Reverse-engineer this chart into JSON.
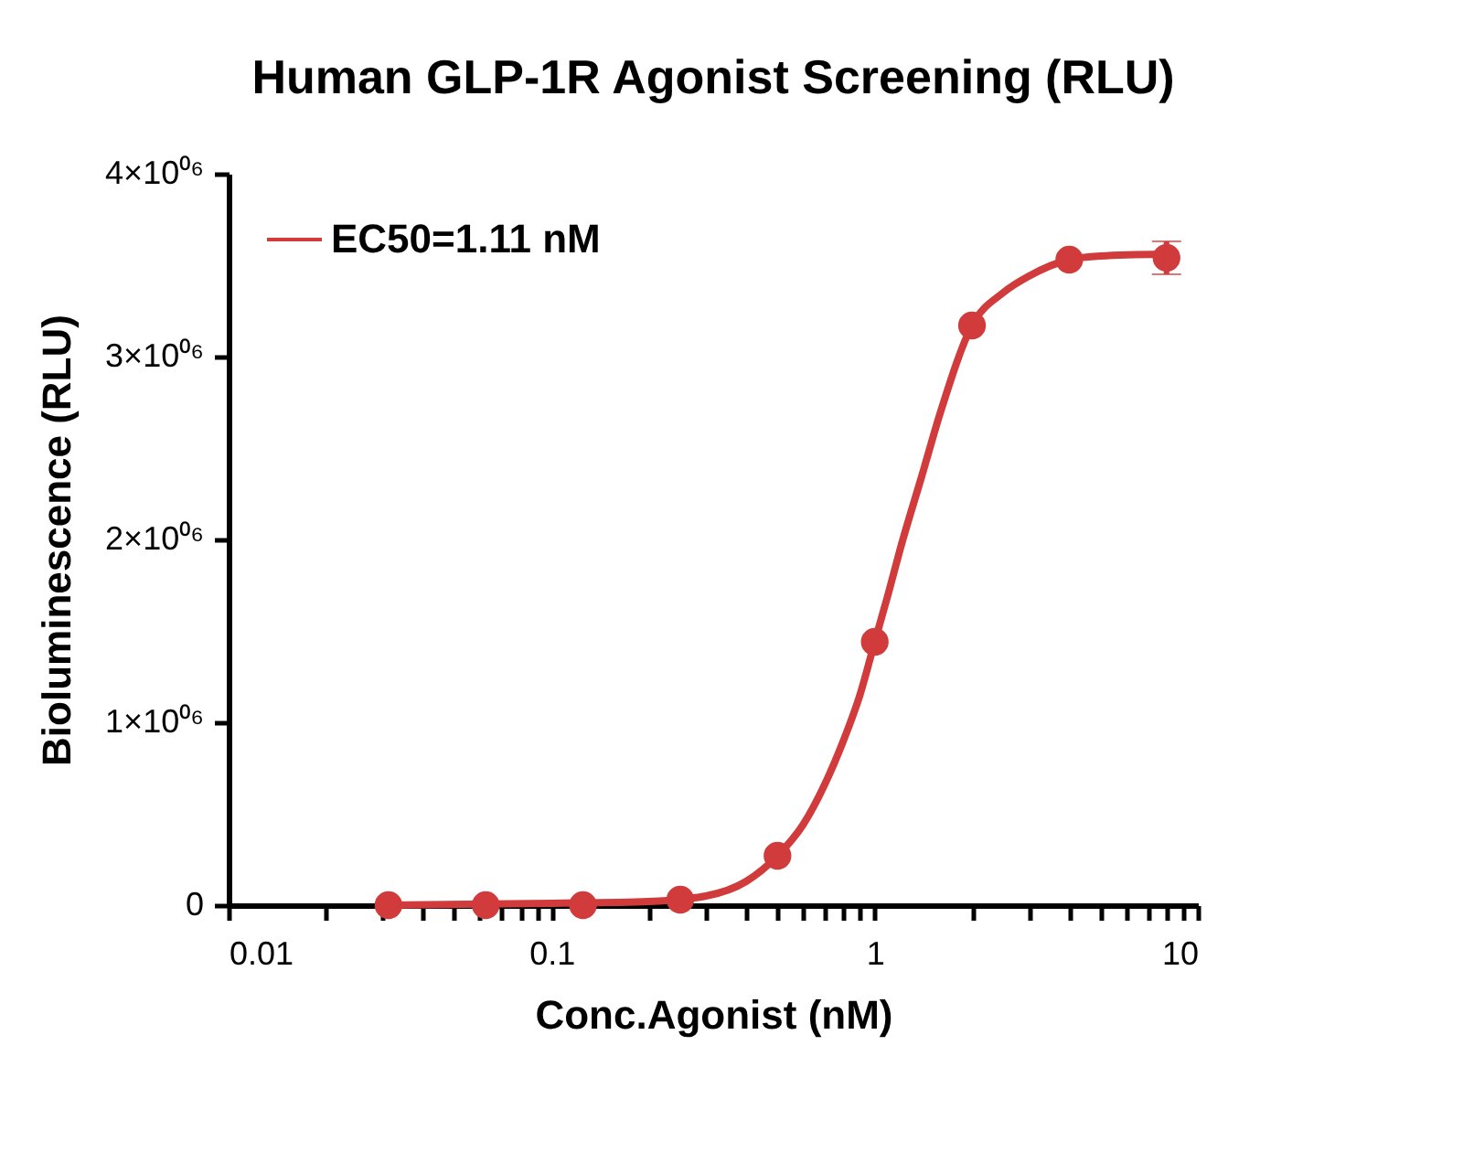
{
  "chart_data": {
    "type": "scatter",
    "title": "Human GLP-1R Agonist Screening  (RLU)",
    "xlabel": "Conc.Agonist (nM)",
    "ylabel": "Bioluminescence (RLU)",
    "log": "x",
    "grid": false,
    "legend": "top left",
    "marker": "circle",
    "xlim": [
      0.01,
      10
    ],
    "xticks": [
      0.01,
      {
        "value": 0.02,
        "label": null
      },
      {
        "value": 0.03,
        "label": null
      },
      {
        "value": 0.04,
        "label": null
      },
      {
        "value": 0.05,
        "label": null
      },
      {
        "value": 0.06,
        "label": null
      },
      {
        "value": 0.07,
        "label": null
      },
      {
        "value": 0.08,
        "label": null
      },
      {
        "value": 0.09,
        "label": null
      },
      0.1,
      {
        "value": 0.2,
        "label": null
      },
      {
        "value": 0.3,
        "label": null
      },
      {
        "value": 0.4,
        "label": null
      },
      {
        "value": 0.5,
        "label": null
      },
      {
        "value": 0.6,
        "label": null
      },
      {
        "value": 0.7,
        "label": null
      },
      {
        "value": 0.8,
        "label": null
      },
      {
        "value": 0.9,
        "label": null
      },
      1,
      {
        "value": 2,
        "label": null
      },
      {
        "value": 3,
        "label": null
      },
      {
        "value": 4,
        "label": null
      },
      {
        "value": 5,
        "label": null
      },
      {
        "value": 6,
        "label": null
      },
      {
        "value": 7,
        "label": null
      },
      {
        "value": 8,
        "label": null
      },
      {
        "value": 9,
        "label": null
      },
      10
    ],
    "ylim": [
      0,
      4000000
    ],
    "yticks": [
      0,
      {
        "value": 1000000,
        "label": "1×10⁰⁶"
      },
      {
        "value": 2000000,
        "label": "2×10⁰⁶"
      },
      {
        "value": 3000000,
        "label": "3×10⁰⁶"
      },
      {
        "value": 4000000,
        "label": "4×10⁰⁶"
      }
    ],
    "series": [
      {
        "color": "#d13b3b",
        "x": [
          0.03125,
          0.0625,
          0.125,
          0.25,
          0.5,
          1,
          2,
          4,
          8
        ],
        "values": [
          0,
          0,
          0,
          30000,
          270000,
          1440000,
          3170000,
          3530000,
          3540000
        ],
        "errors": [
          null,
          null,
          null,
          null,
          null,
          null,
          null,
          null,
          90000
        ]
      },
      {
        "type": "line",
        "name": "EC50=1.11 nM",
        "color": "#d13b3b",
        "marker": "none",
        "x": [
          0.03125,
          0.1,
          0.2,
          0.3,
          0.4,
          0.5,
          0.6,
          0.7,
          0.8,
          0.9,
          1,
          1.1,
          1.2,
          1.4,
          1.6,
          2,
          2.5,
          3,
          4,
          5,
          8
        ],
        "values": [
          0,
          10000,
          20000,
          50000,
          130000,
          270000,
          440000,
          660000,
          900000,
          1150000,
          1440000,
          1700000,
          1950000,
          2350000,
          2700000,
          3170000,
          3350000,
          3440000,
          3530000,
          3550000,
          3560000
        ]
      }
    ]
  }
}
